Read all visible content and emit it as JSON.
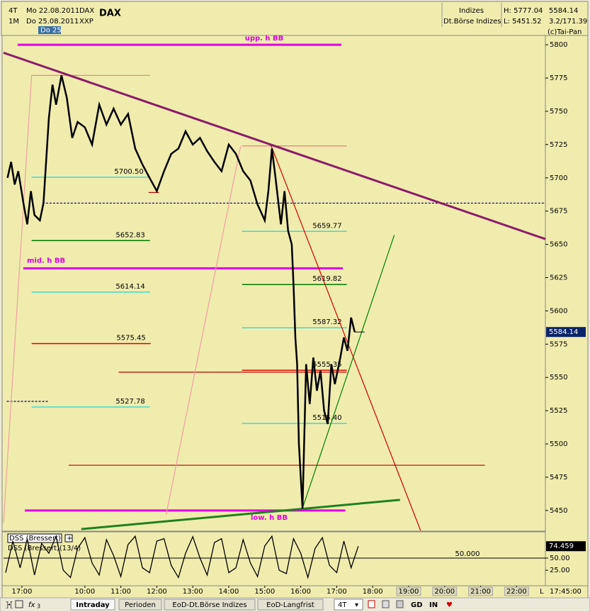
{
  "header": {
    "interval": "4T",
    "from": "Mo 22.08.2011",
    "symbol": "DAX",
    "period": "1M",
    "to": "Do 25.08.2011",
    "exchange": "XXP",
    "marker": "Do 25",
    "group": "Indizes",
    "market": "Dt.Börse Indizes",
    "high": "H: 5777.04",
    "low": "L: 5451.52",
    "change": "3.2/171.39",
    "copyright": "(c)Tai-Pan"
  },
  "chart_data": [
    {
      "type": "line",
      "title": "DAX",
      "last": 5584.14,
      "xlim": [
        7.74,
        22.8
      ],
      "xticks": [
        {
          "value": 8.25,
          "label": "17:00"
        },
        {
          "value": 10,
          "label": "10:00"
        },
        {
          "value": 11,
          "label": "11:00"
        },
        {
          "value": 12,
          "label": "12:00"
        },
        {
          "value": 13,
          "label": "13:00"
        },
        {
          "value": 14,
          "label": "14:00"
        },
        {
          "value": 15,
          "label": "15:00"
        },
        {
          "value": 16,
          "label": "16:00"
        },
        {
          "value": 17,
          "label": "17:00"
        },
        {
          "value": 18,
          "label": "18:00"
        },
        {
          "value": 19,
          "label": "19:00"
        },
        {
          "value": 20,
          "label": "20:00"
        },
        {
          "value": 21,
          "label": "21:00"
        },
        {
          "value": 22,
          "label": "22:00"
        }
      ],
      "ylim": [
        5435,
        5807
      ],
      "yticks": [
        5450,
        5475,
        5500,
        5525,
        5550,
        5575,
        5600,
        5625,
        5650,
        5675,
        5700,
        5725,
        5750,
        5775,
        5800
      ],
      "series": [
        {
          "color": "#000000",
          "x": [
            7.85,
            7.95,
            8.05,
            8.15,
            8.3,
            8.4,
            8.5,
            8.6,
            8.75,
            8.85,
            9.0,
            9.1,
            9.2,
            9.35,
            9.5,
            9.65,
            9.8,
            10.0,
            10.2,
            10.4,
            10.6,
            10.8,
            11.0,
            11.2,
            11.4,
            11.6,
            11.8,
            12.0,
            12.2,
            12.4,
            12.6,
            12.8,
            13.0,
            13.2,
            13.4,
            13.6,
            13.8,
            14.0,
            14.2,
            14.4,
            14.6,
            14.8,
            15.0,
            15.1,
            15.2,
            15.3,
            15.45,
            15.55,
            15.65,
            15.75,
            15.8,
            15.85,
            15.9,
            15.95,
            16.05,
            16.15,
            16.25,
            16.35,
            16.45,
            16.55,
            16.65,
            16.75,
            16.85,
            16.95,
            17.1,
            17.2,
            17.3,
            17.4,
            17.5
          ],
          "values": [
            5700,
            5712,
            5695,
            5705,
            5680,
            5665,
            5690,
            5672,
            5668,
            5681,
            5745,
            5770,
            5755,
            5777.04,
            5760,
            5730,
            5742,
            5738,
            5725,
            5755,
            5740,
            5752,
            5740,
            5748,
            5722,
            5710,
            5700,
            5690,
            5705,
            5718,
            5722,
            5735,
            5725,
            5730,
            5720,
            5712,
            5705,
            5725,
            5718,
            5705,
            5698,
            5680,
            5668,
            5690,
            5722,
            5700,
            5665,
            5690,
            5660,
            5650,
            5620,
            5580,
            5560,
            5500,
            5451.52,
            5560,
            5530,
            5565,
            5540,
            5555,
            5525,
            5515,
            5560,
            5545,
            5565,
            5580,
            5570,
            5595,
            5584.14
          ]
        }
      ],
      "bands": [
        {
          "label": "upp. h BB",
          "value": 5800,
          "color": "#e000e0",
          "x": [
            8.13,
            17.13
          ]
        },
        {
          "label": "mid. h BB",
          "value": 5632,
          "color": "#e000e0",
          "x": [
            8.29,
            17.17
          ]
        },
        {
          "label": "low. h BB",
          "value": 5450,
          "color": "#e000e0",
          "x": [
            8.33,
            17.24
          ]
        }
      ],
      "levels": [
        {
          "value": 5700.5,
          "label": "5700.50",
          "color": "#40d8d0",
          "x": [
            8.52,
            11.77
          ]
        },
        {
          "value": 5652.83,
          "label": "5652.83",
          "color": "#007a00",
          "x": [
            8.52,
            11.81
          ]
        },
        {
          "value": 5614.14,
          "label": "5614.14",
          "color": "#40d8d0",
          "x": [
            8.52,
            11.81
          ]
        },
        {
          "value": 5575.45,
          "label": "5575.45",
          "color": "#e00000",
          "x": [
            8.52,
            11.83
          ]
        },
        {
          "value": 5527.78,
          "label": "5527.78",
          "color": "#40d8d0",
          "x": [
            8.52,
            11.81
          ]
        },
        {
          "value": 5659.77,
          "label": "5659.77",
          "color": "#40d8d0",
          "x": [
            14.37,
            17.28
          ]
        },
        {
          "value": 5619.82,
          "label": "5619.82",
          "color": "#007a00",
          "x": [
            14.37,
            17.28
          ]
        },
        {
          "value": 5587.32,
          "label": "5587.32",
          "color": "#40d8d0",
          "x": [
            14.37,
            17.28
          ]
        },
        {
          "value": 5555.35,
          "label": "5555.35",
          "color": "#e00000",
          "x": [
            14.37,
            17.28
          ]
        },
        {
          "value": 5515.4,
          "label": "5515.40",
          "color": "#40d8d0",
          "x": [
            14.37,
            17.28
          ]
        }
      ],
      "lines": [
        {
          "value": 5777,
          "color": "#e08080",
          "x": [
            8.52,
            11.81
          ]
        },
        {
          "value": 5724,
          "color": "#e08080",
          "x": [
            14.37,
            17.28
          ]
        },
        {
          "value": 5689,
          "color": "#c00000",
          "x": [
            11.77,
            12.06
          ]
        },
        {
          "value": 5554,
          "color": "#c00000",
          "x": [
            10.94,
            17.28
          ]
        },
        {
          "value": 5484,
          "color": "#b00000",
          "x": [
            9.55,
            21.12
          ]
        },
        {
          "value": 5681,
          "color": "#000080",
          "x": [
            8.82,
            22.8
          ],
          "style": "dotted"
        },
        {
          "value": 5532,
          "color": "#000080",
          "x": [
            7.83,
            8.98
          ],
          "style": "dotted"
        }
      ],
      "trendlines": [
        {
          "color": "#8b1a6b",
          "x": [
            7.74,
            22.8
          ],
          "values": [
            5794,
            5654
          ],
          "style": "thick"
        },
        {
          "color": "#d00000",
          "x": [
            15.18,
            19.33
          ],
          "values": [
            5724,
            5435
          ]
        },
        {
          "color": "#008000",
          "x": [
            16.04,
            18.6
          ],
          "values": [
            5451,
            5657
          ]
        },
        {
          "color": "#208020",
          "x": [
            9.9,
            18.76
          ],
          "values": [
            5436,
            5458
          ],
          "style": "thick"
        },
        {
          "color": "#f0a0a0",
          "x": [
            7.74,
            8.52
          ],
          "values": [
            5441,
            5777
          ]
        },
        {
          "color": "#f0a0a0",
          "x": [
            12.26,
            14.33
          ],
          "values": [
            5447,
            5724
          ]
        }
      ]
    },
    {
      "type": "line",
      "title": "DSS (Bressert)(13/4)",
      "legend": "DSS (Bressert)",
      "xlim": [
        7.74,
        22.8
      ],
      "ylim": [
        -7,
        104
      ],
      "yticks": [
        {
          "value": 25,
          "label": "25.00"
        },
        {
          "value": 50,
          "label": "50.00"
        }
      ],
      "reference": {
        "value": 50,
        "label": "50.000"
      },
      "series": [
        {
          "color": "#000000",
          "x": [
            7.8,
            8.0,
            8.2,
            8.4,
            8.6,
            8.8,
            9.0,
            9.2,
            9.4,
            9.6,
            9.8,
            10.0,
            10.2,
            10.4,
            10.6,
            10.8,
            11.0,
            11.2,
            11.4,
            11.6,
            11.8,
            12.0,
            12.2,
            12.4,
            12.6,
            12.8,
            13.0,
            13.2,
            13.4,
            13.6,
            13.8,
            14.0,
            14.2,
            14.4,
            14.6,
            14.8,
            15.0,
            15.2,
            15.4,
            15.6,
            15.8,
            16.0,
            16.2,
            16.4,
            16.6,
            16.8,
            17.0,
            17.2,
            17.4,
            17.6
          ],
          "values": [
            20,
            85,
            30,
            90,
            15,
            80,
            60,
            95,
            25,
            10,
            70,
            92,
            40,
            15,
            88,
            55,
            12,
            78,
            95,
            30,
            20,
            85,
            90,
            35,
            10,
            60,
            94,
            50,
            15,
            82,
            90,
            20,
            30,
            88,
            40,
            12,
            75,
            95,
            25,
            18,
            90,
            60,
            10,
            70,
            92,
            35,
            20,
            85,
            30,
            74.459
          ]
        }
      ]
    }
  ],
  "time": "17:45:00",
  "scale_mode": "L",
  "toolbar": {
    "count": "3",
    "tabs": [
      "Intraday",
      "Perioden",
      "EoD-Dt.Börse Indizes",
      "EoD-Langfrist"
    ],
    "interval": "4T",
    "buttons": [
      "GD",
      "IN"
    ]
  }
}
